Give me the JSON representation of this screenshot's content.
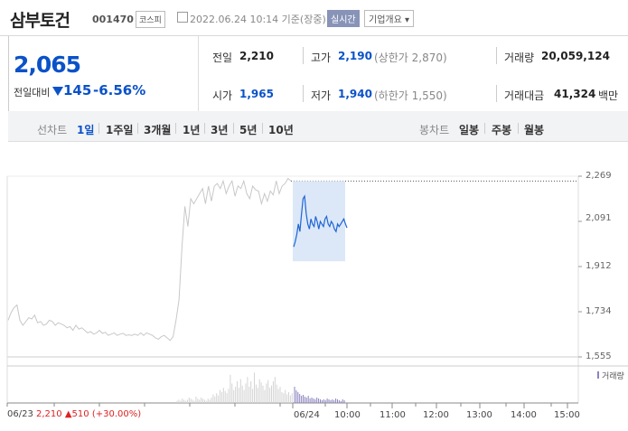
{
  "header": {
    "name": "삼부토건",
    "code": "001470",
    "market": "코스피",
    "datetime": "2022.06.24 10:14 기준(장중)",
    "realtime": "실시간",
    "info": "기업개요"
  },
  "quote": {
    "price": "2,065",
    "change_label": "전일대비",
    "change": "145",
    "change_pct": "-6.56%",
    "prev_close_label": "전일",
    "prev_close": "2,210",
    "high_label": "고가",
    "high": "2,190",
    "upper_limit": "(상한가 2,870)",
    "volume_label": "거래량",
    "volume": "20,059,124",
    "open_label": "시가",
    "open": "1,965",
    "low_label": "저가",
    "low": "1,940",
    "lower_limit": "(하한가 1,550)",
    "amount_label": "거래대금",
    "amount": "41,324",
    "amount_unit": "백만"
  },
  "tabs": {
    "line_label": "선차트",
    "line": [
      "1일",
      "1주일",
      "3개월",
      "1년",
      "3년",
      "5년",
      "10년"
    ],
    "selected": "1일",
    "candle_label": "봉차트",
    "candle": [
      "일봉",
      "주봉",
      "월봉"
    ]
  },
  "chart_data": {
    "type": "line",
    "y_ticks": [
      "2,269",
      "2,091",
      "1,912",
      "1,734",
      "1,555"
    ],
    "ylim": [
      1555,
      2269
    ],
    "x_ticks": [
      "06/24",
      "10:00",
      "11:00",
      "12:00",
      "13:00",
      "14:00",
      "15:00"
    ],
    "volume_label": "거래량",
    "prev_day_footer": {
      "date": "06/23",
      "close": "2,210",
      "change": "510",
      "pct": "(+30.00%)"
    },
    "colors": {
      "today": "#1e64d4",
      "prev": "#c8c8c8",
      "ref": "#555555"
    },
    "series": [
      {
        "values": [
          1700,
          1730,
          1750,
          1760,
          1700,
          1680,
          1695,
          1710,
          1705,
          1720,
          1690,
          1695,
          1680,
          1685,
          1700,
          1695,
          1680,
          1690,
          1685,
          1680,
          1670,
          1675,
          1660,
          1680,
          1665,
          1670,
          1660,
          1650,
          1655,
          1645,
          1650,
          1660,
          1648,
          1652,
          1640,
          1645,
          1650,
          1640,
          1645,
          1648,
          1640,
          1642,
          1640,
          1645,
          1640,
          1650,
          1640,
          1650,
          1645,
          1640,
          1630,
          1625,
          1635,
          1640,
          1630,
          1620,
          1635,
          1700,
          1780,
          1990,
          2150,
          2070,
          2180,
          2160,
          2180,
          2200,
          2220,
          2160,
          2230,
          2170,
          2230,
          2240,
          2220,
          2250,
          2200,
          2230,
          2250,
          2190,
          2230,
          2220,
          2250,
          2200,
          2180,
          2230,
          2215,
          2210,
          2160,
          2200,
          2170,
          2210,
          2195,
          2250,
          2200,
          2230,
          2240,
          2260,
          2250
        ]
      },
      {
        "values": [
          1990,
          2010,
          2040,
          2080,
          2050,
          2120,
          2180,
          2190,
          2120,
          2080,
          2060,
          2100,
          2080,
          2070,
          2110,
          2090,
          2060,
          2090,
          2080,
          2070,
          2100,
          2110,
          2080,
          2070,
          2090,
          2080,
          2060,
          2050,
          2080,
          2070,
          2080,
          2090,
          2100,
          2080,
          2065
        ]
      }
    ]
  }
}
